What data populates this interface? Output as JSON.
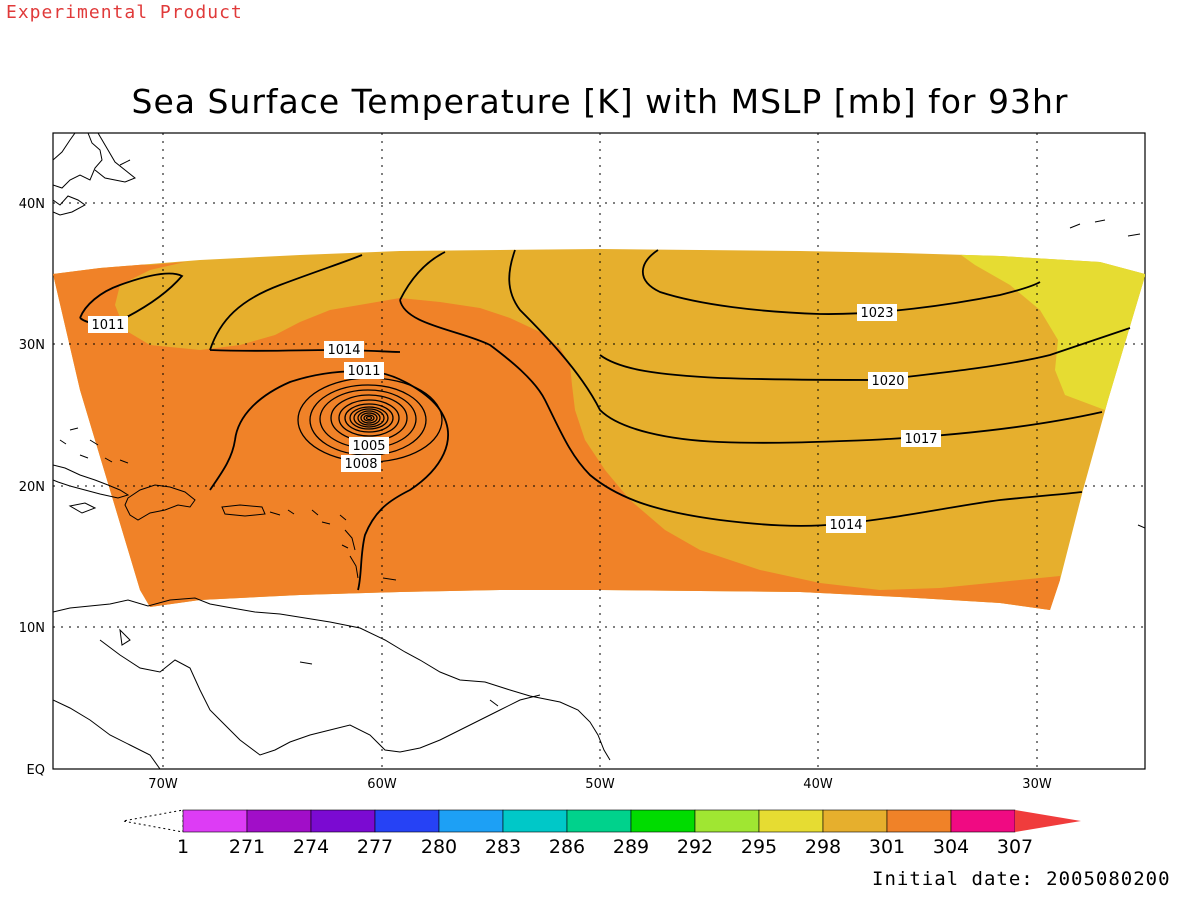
{
  "product_label": "Experimental Product",
  "title": "Sea Surface Temperature [K] with MSLP [mb] for 93hr",
  "initial_date": "Initial date: 2005080200",
  "map": {
    "lon_labels": [
      "70W",
      "60W",
      "50W",
      "40W",
      "30W"
    ],
    "lat_labels": [
      "40N",
      "30N",
      "20N",
      "10N",
      "EQ"
    ],
    "grid": "dotted"
  },
  "colorbar": {
    "labels": [
      "1",
      "271",
      "274",
      "277",
      "280",
      "283",
      "286",
      "289",
      "292",
      "295",
      "298",
      "301",
      "304",
      "307"
    ],
    "colors": [
      "#dd3cf5",
      "#a10ec8",
      "#7b0ad2",
      "#2642f5",
      "#1da0f5",
      "#00c8c8",
      "#00d28c",
      "#00dc00",
      "#a0e632",
      "#e6dc32",
      "#e6af2d",
      "#f08228",
      "#f00a82",
      "#f03c3c"
    ],
    "left_arrow_color": "#ffffff"
  },
  "contours": {
    "labels": [
      "1011",
      "1014",
      "1011",
      "1005",
      "1008",
      "1023",
      "1020",
      "1017",
      "1014"
    ]
  },
  "colors": {
    "sst_298": "#e6dc32",
    "sst_301": "#e6af2d",
    "sst_304": "#f08228",
    "product_label": "#e03a3a"
  }
}
